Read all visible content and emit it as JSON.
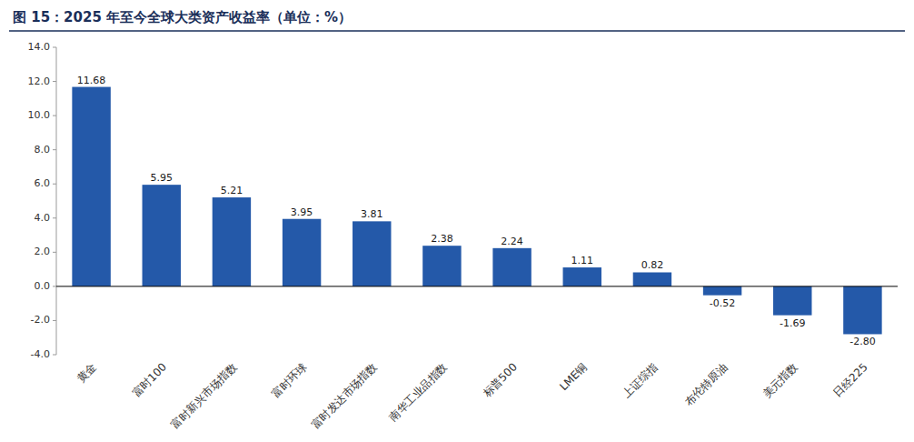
{
  "chart_data": {
    "type": "bar",
    "title": "图 15：2025 年至今全球大类资产收益率（单位：%）",
    "categories": [
      "黄金",
      "富时100",
      "富时新兴市场指数",
      "富时环球",
      "富时发达市场指数",
      "南华工业品指数",
      "标普500",
      "LME铜",
      "上证综指",
      "布伦特原油",
      "美元指数",
      "日经225"
    ],
    "values": [
      11.68,
      5.95,
      5.21,
      3.95,
      3.81,
      2.38,
      2.24,
      1.11,
      0.82,
      -0.52,
      -1.69,
      -2.8
    ],
    "value_labels": [
      "11.68",
      "5.95",
      "5.21",
      "3.95",
      "3.81",
      "2.38",
      "2.24",
      "1.11",
      "0.82",
      "-0.52",
      "-1.69",
      "-2.80"
    ],
    "color": "#2459A9",
    "ylim": [
      -4.0,
      14.0
    ],
    "yticks": [
      {
        "value": -4.0,
        "label": "-4.0"
      },
      {
        "value": -2.0,
        "label": "-2.0"
      },
      {
        "value": 0.0,
        "label": "0.0"
      },
      {
        "value": 2.0,
        "label": "2.0"
      },
      {
        "value": 4.0,
        "label": "4.0"
      },
      {
        "value": 6.0,
        "label": "6.0"
      },
      {
        "value": 8.0,
        "label": "8.0"
      },
      {
        "value": 10.0,
        "label": "10.0"
      },
      {
        "value": 12.0,
        "label": "12.0"
      },
      {
        "value": 14.0,
        "label": "14.0"
      }
    ],
    "grid": false,
    "data_labels": true
  }
}
